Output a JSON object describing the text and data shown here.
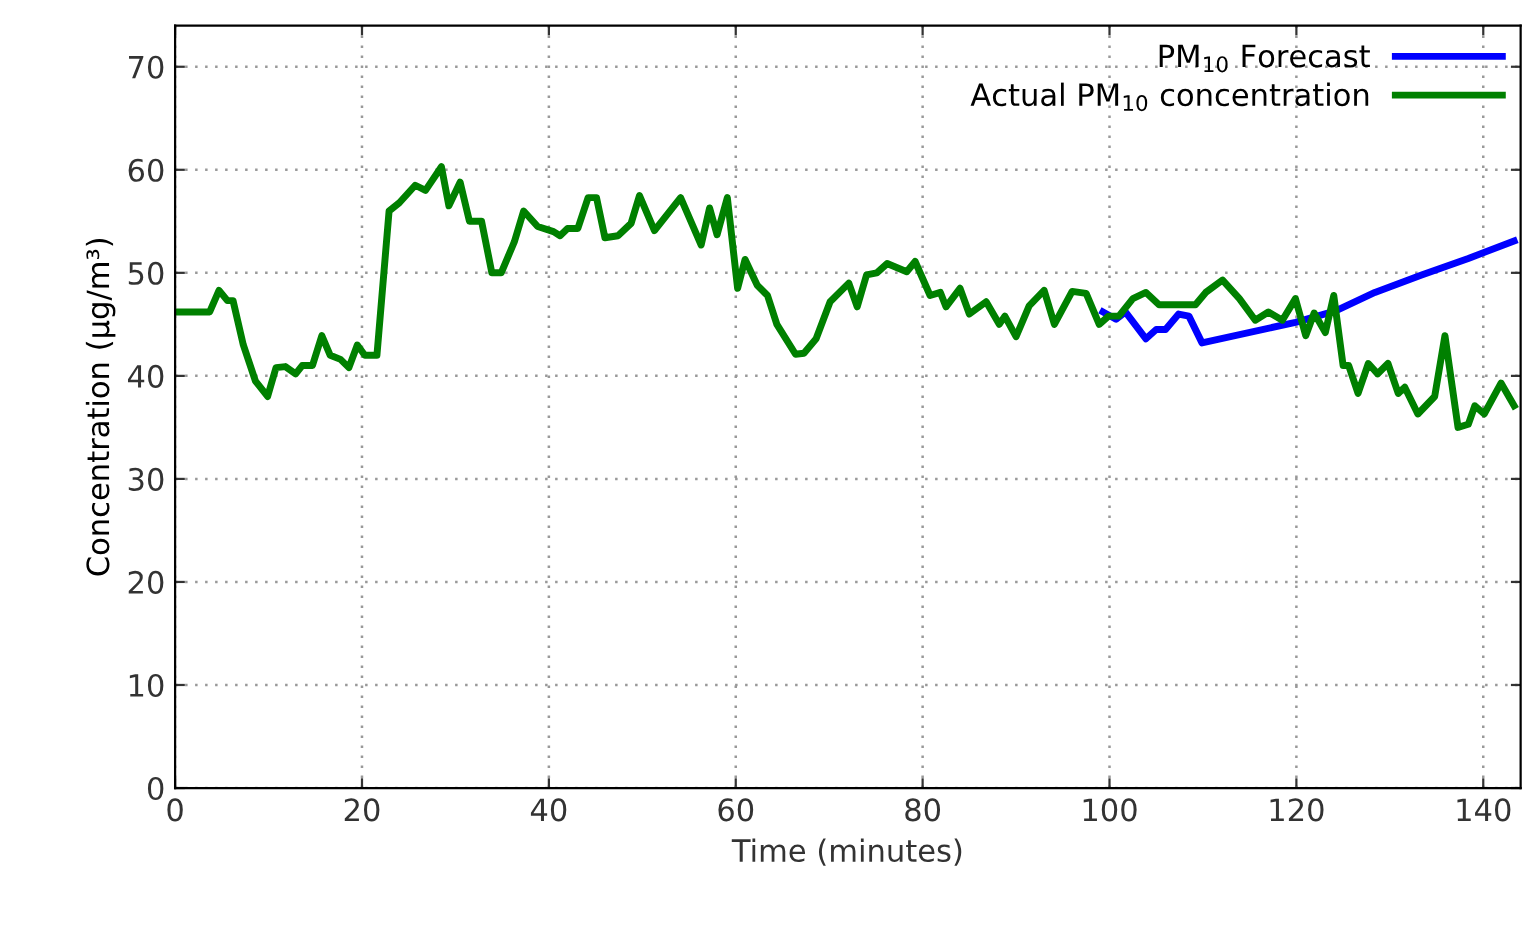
{
  "chart_data": {
    "type": "line",
    "xlabel": "Time (minutes)",
    "ylabel": "Concentration (μg/m³)",
    "xlim": [
      0,
      144
    ],
    "xticks": [
      0,
      20,
      40,
      60,
      80,
      100,
      120,
      140
    ],
    "ylim": [
      0,
      74
    ],
    "yticks": [
      0,
      10,
      20,
      30,
      40,
      50,
      60,
      70
    ],
    "grid": true,
    "legend": "top right",
    "line_style": "solid",
    "marker": "none",
    "series": [
      {
        "name": "PM$_{10}$ Forecast",
        "color": "#0000ff",
        "x": [
          99.3,
          100.7,
          101.7,
          103.9,
          105,
          106,
          107.4,
          108.5,
          109.9,
          119.9,
          124.2,
          128.4,
          133.4,
          138.4,
          143.3
        ],
        "values": [
          46.2,
          45.5,
          46.2,
          43.6,
          44.5,
          44.5,
          46.0,
          45.8,
          43.2,
          45.2,
          46.3,
          48.1,
          49.8,
          51.4,
          53.1
        ]
      },
      {
        "name": "Actual PM$_{10}$ concentration",
        "color": "#008000",
        "x": [
          0,
          3.7,
          4.7,
          5.6,
          6.2,
          7.3,
          8.6,
          9.9,
          10.8,
          11.8,
          12.9,
          13.6,
          14.7,
          15.7,
          16.6,
          17.7,
          18.6,
          19.5,
          20.3,
          21.6,
          22.9,
          24,
          25.7,
          26.8,
          28.5,
          29.3,
          30.5,
          31.5,
          32.8,
          33.9,
          34.9,
          36.3,
          37.3,
          38.8,
          40.5,
          41.2,
          42,
          43.1,
          44.2,
          45.1,
          46,
          47.4,
          48.8,
          49.7,
          51.3,
          54.1,
          56.3,
          57.2,
          58,
          59.1,
          60.2,
          61,
          62.3,
          63.4,
          64.4,
          66.4,
          67.3,
          68.6,
          70.1,
          72.1,
          73,
          74,
          75.1,
          76.2,
          78.3,
          79.2,
          80.8,
          81.9,
          82.5,
          84,
          85,
          86.8,
          88.2,
          88.8,
          90,
          91.4,
          93,
          94.1,
          96,
          97.5,
          98.9,
          99.9,
          101,
          102.5,
          103.9,
          105.3,
          109.2,
          110.3,
          112.1,
          113.9,
          115.6,
          117,
          118.5,
          119.9,
          121,
          121.9,
          123.1,
          124,
          125,
          125.6,
          126.6,
          127.7,
          128.7,
          129.8,
          130.9,
          131.6,
          133,
          134.8,
          135.9,
          137.3,
          138.4,
          139.1,
          140.1,
          141.9,
          143.3
        ],
        "values": [
          46.2,
          46.2,
          48.3,
          47.3,
          47.3,
          43,
          39.5,
          38,
          40.8,
          40.9,
          40.2,
          41,
          41,
          43.9,
          42,
          41.6,
          40.8,
          43,
          42,
          42,
          56,
          56.8,
          58.5,
          58,
          60.3,
          56.5,
          58.8,
          55,
          55,
          50,
          50,
          53,
          56,
          54.5,
          54,
          53.6,
          54.3,
          54.3,
          57.3,
          57.3,
          53.4,
          53.6,
          54.8,
          57.5,
          54.1,
          57.3,
          52.7,
          56.3,
          53.7,
          57.3,
          48.5,
          51.3,
          48.8,
          47.8,
          45.0,
          42.1,
          42.2,
          43.6,
          47.2,
          49,
          46.7,
          49.8,
          50,
          50.9,
          50.1,
          51.1,
          47.8,
          48.1,
          46.7,
          48.5,
          46,
          47.2,
          45,
          45.8,
          43.8,
          46.8,
          48.3,
          45,
          48.2,
          48.0,
          45.0,
          45.8,
          45.8,
          47.5,
          48.1,
          46.9,
          46.9,
          48.1,
          49.3,
          47.5,
          45.4,
          46.2,
          45.4,
          47.5,
          43.9,
          46.1,
          44.2,
          47.8,
          41,
          41,
          38.3,
          41.2,
          40.2,
          41.2,
          38.3,
          38.9,
          36.3,
          38,
          43.9,
          35,
          35.3,
          37.1,
          36.3,
          39.3,
          37.1
        ]
      }
    ]
  }
}
